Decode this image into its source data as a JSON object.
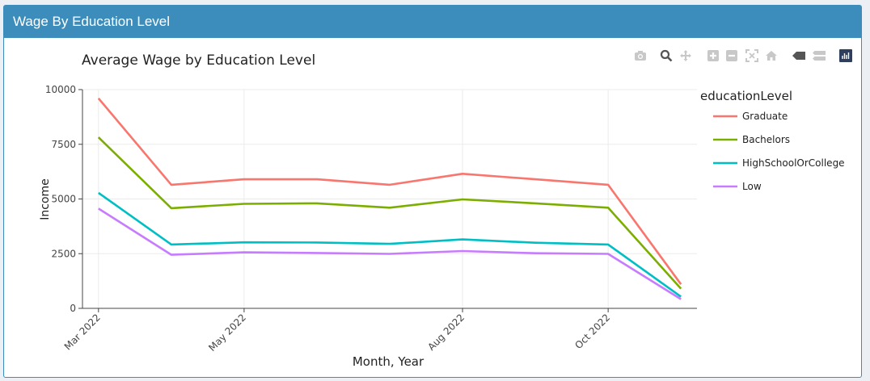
{
  "panel": {
    "title": "Wage By Education Level"
  },
  "toolbar": {
    "icons": [
      "camera-icon",
      "zoom-icon",
      "pan-icon",
      "zoom-in-icon",
      "zoom-out-icon",
      "autoscale-icon",
      "reset-axes-icon",
      "hover-closest-icon",
      "hover-compare-icon",
      "plotly-logo-icon"
    ]
  },
  "chart_data": {
    "type": "line",
    "title": "Average Wage by Education Level",
    "xlabel": "Month, Year",
    "ylabel": "Income",
    "ylim": [
      0,
      10000
    ],
    "yticks": [
      0,
      2500,
      5000,
      7500,
      10000
    ],
    "ytick_labels": [
      "0",
      "2500",
      "5000",
      "7500",
      "10000"
    ],
    "x": [
      "2022-03",
      "2022-04",
      "2022-05",
      "2022-06",
      "2022-07",
      "2022-08",
      "2022-09",
      "2022-10",
      "2022-11"
    ],
    "xticks": [
      "2022-03",
      "2022-05",
      "2022-08",
      "2022-10"
    ],
    "xtick_labels": [
      "Mar 2022",
      "May 2022",
      "Aug 2022",
      "Oct 2022"
    ],
    "grid": true,
    "legend": {
      "title": "educationLevel",
      "placement": "right"
    },
    "series": [
      {
        "name": "Graduate",
        "color": "#f8766d",
        "values": [
          9600,
          5650,
          5900,
          5900,
          5650,
          6150,
          5900,
          5650,
          1100
        ]
      },
      {
        "name": "Bachelors",
        "color": "#7cae00",
        "values": [
          7820,
          4580,
          4780,
          4800,
          4600,
          4980,
          4800,
          4600,
          900
        ]
      },
      {
        "name": "HighSchoolOrCollege",
        "color": "#00bfc4",
        "values": [
          5280,
          2920,
          3020,
          3010,
          2950,
          3150,
          3000,
          2920,
          530
        ]
      },
      {
        "name": "Low",
        "color": "#c77cff",
        "values": [
          4560,
          2450,
          2560,
          2530,
          2490,
          2620,
          2520,
          2490,
          420
        ]
      }
    ]
  }
}
